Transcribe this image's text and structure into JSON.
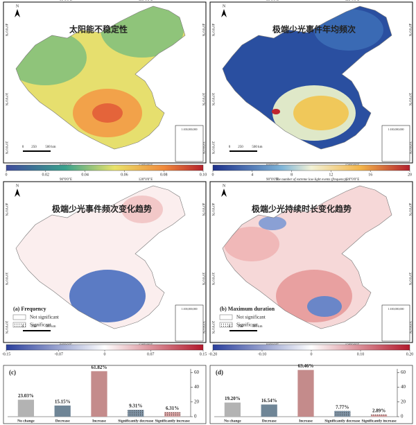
{
  "panels": [
    {
      "title": "太阳能不稳定性",
      "colorbar": {
        "lim": [
          0,
          0.1
        ],
        "ticks": [
          0,
          0.02,
          0.04,
          0.06,
          0.08,
          {
            "value": 0.1,
            "label": "0.10"
          }
        ]
      }
    },
    {
      "title": "极端少光事件年均频次",
      "colorbar": {
        "lim": [
          0,
          20
        ],
        "ticks": [
          0,
          4,
          8,
          12,
          16,
          20
        ],
        "label": "The number of extreme low-light events (frequency)"
      }
    },
    {
      "title": "极端少光事件频次变化趋势",
      "legend": {
        "title": "(a) Frequency",
        "items": [
          "Not significant",
          "Significant"
        ]
      },
      "colorbar": {
        "lim": [
          -0.15,
          0.15
        ],
        "ticks": [
          -0.15,
          -0.07,
          0,
          0.07,
          0.15
        ]
      }
    },
    {
      "title": "极端少光持续时长变化趋势",
      "legend": {
        "title": "(b) Maximum duration",
        "items": [
          "Not significant",
          "Significant"
        ]
      },
      "colorbar": {
        "lim": [
          -0.2,
          0.2
        ],
        "ticks": [
          {
            "value": -0.2,
            "label": "-0.20"
          },
          {
            "value": -0.1,
            "label": "-0.10"
          },
          0,
          {
            "value": 0.1,
            "label": "0.10"
          },
          {
            "value": 0.2,
            "label": "0.20"
          }
        ]
      }
    }
  ],
  "map_labels": {
    "lon": [
      "90°0'0\"E",
      "120°0'0\"E"
    ],
    "lat": [
      "40°0'0\"N",
      "30°0'0\"N",
      "20°0'0\"N"
    ],
    "scale": [
      "0",
      "250",
      "500 km"
    ],
    "inset_scale": "1:100,000,000",
    "north": "N"
  },
  "chart_data": [
    {
      "type": "bar",
      "label": "(c)",
      "categories": [
        "No change",
        "Decrease",
        "Increase",
        "Significantly decrease",
        "Significantly increase"
      ],
      "values": [
        23.03,
        15.15,
        61.82,
        9.31,
        6.31
      ],
      "value_labels": [
        "23.03%",
        "15.15%",
        "61.82%",
        "9.31%",
        "6.31%"
      ],
      "colors": [
        "#b3b3b3",
        "#6f8596",
        "#c48b8b",
        "#8094a6",
        "#d9a3a3"
      ],
      "ylim": [
        0,
        65
      ],
      "yticks": [
        0,
        20,
        40,
        60
      ]
    },
    {
      "type": "bar",
      "label": "(d)",
      "categories": [
        "No change",
        "Decrease",
        "Increase",
        "Significantly decrease",
        "Significantly increase"
      ],
      "values": [
        19.2,
        16.54,
        63.46,
        7.77,
        2.89
      ],
      "value_labels": [
        "19.20%",
        "16.54%",
        "63.46%",
        "7.77%",
        "2.89%"
      ],
      "colors": [
        "#b3b3b3",
        "#6f8596",
        "#c48b8b",
        "#8094a6",
        "#d9a3a3"
      ],
      "ylim": [
        0,
        65
      ],
      "yticks": [
        0,
        20,
        40,
        60
      ]
    }
  ]
}
